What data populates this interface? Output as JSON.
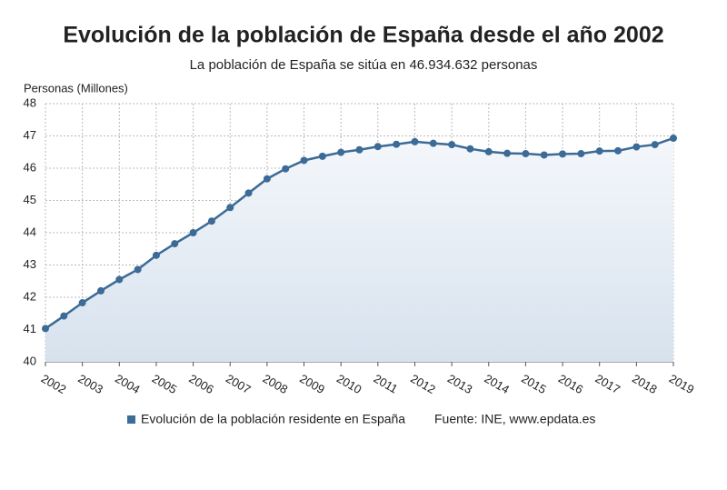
{
  "chart_data": {
    "type": "line",
    "title": "Evolución de la población de España desde el año 2002",
    "subtitle": "La población de España se sitúa en 46.934.632 personas",
    "y_label": "Personas (Millones)",
    "source": "Fuente: INE, www.epdata.es",
    "x": [
      2002,
      2002.5,
      2003,
      2003.5,
      2004,
      2004.5,
      2005,
      2005.5,
      2006,
      2006.5,
      2007,
      2007.5,
      2008,
      2008.5,
      2009,
      2009.5,
      2010,
      2010.5,
      2011,
      2011.5,
      2012,
      2012.5,
      2013,
      2013.5,
      2014,
      2014.5,
      2015,
      2015.5,
      2016,
      2016.5,
      2017,
      2017.5,
      2018,
      2018.5,
      2019
    ],
    "series": [
      {
        "name": "Evolución de la población residente en España",
        "color": "#3b6b96",
        "values": [
          41.03,
          41.42,
          41.83,
          42.2,
          42.55,
          42.86,
          43.3,
          43.66,
          44.0,
          44.36,
          44.78,
          45.23,
          45.67,
          45.98,
          46.24,
          46.37,
          46.49,
          46.57,
          46.67,
          46.74,
          46.82,
          46.77,
          46.73,
          46.6,
          46.51,
          46.46,
          46.45,
          46.41,
          46.44,
          46.45,
          46.53,
          46.54,
          46.66,
          46.73,
          46.93
        ]
      }
    ],
    "xlim": [
      2002,
      2019
    ],
    "xticks": [
      2002,
      2003,
      2004,
      2005,
      2006,
      2007,
      2008,
      2009,
      2010,
      2011,
      2012,
      2013,
      2014,
      2015,
      2016,
      2017,
      2018,
      2019
    ],
    "ylim": [
      40,
      48
    ],
    "yticks": [
      40,
      41,
      42,
      43,
      44,
      45,
      46,
      47,
      48
    ],
    "grid": true
  }
}
